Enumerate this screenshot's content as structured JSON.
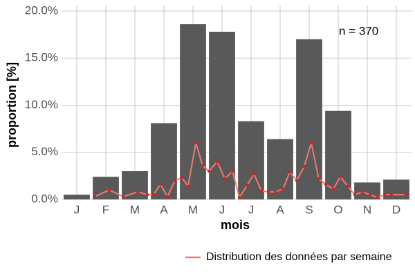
{
  "chart_data": {
    "type": "bar",
    "xlabel": "mois",
    "ylabel": "proportion [%]",
    "annotation": "n = 370",
    "categories": [
      "J",
      "F",
      "M",
      "A",
      "M",
      "J",
      "J",
      "A",
      "S",
      "O",
      "N",
      "D"
    ],
    "values": [
      0.5,
      2.4,
      3.0,
      8.1,
      18.6,
      17.8,
      8.3,
      6.4,
      17.0,
      9.4,
      1.8,
      2.1
    ],
    "color": "#595959",
    "ylim": [
      0,
      20
    ],
    "yticks": [
      {
        "value": 0,
        "label": "0.0%"
      },
      {
        "value": 5,
        "label": "5.0%"
      },
      {
        "value": 10,
        "label": "10.0%"
      },
      {
        "value": 15,
        "label": "15.0%"
      },
      {
        "value": 20,
        "label": "20.0%"
      }
    ],
    "grid": true,
    "legend": "bottom-right",
    "line": {
      "name": "Distribution des données par semaine",
      "color": "#f07a70",
      "point_color": "#e31a1c",
      "x": [
        1.62,
        2.12,
        2.6,
        3.1,
        3.43,
        3.64,
        3.88,
        4.12,
        4.38,
        4.62,
        4.83,
        5.1,
        5.33,
        5.55,
        5.83,
        6.1,
        6.36,
        6.6,
        6.86,
        7.1,
        7.36,
        7.6,
        7.83,
        8.1,
        8.33,
        8.57,
        8.83,
        9.07,
        9.33,
        9.57,
        9.83,
        10.07,
        10.33,
        10.57,
        10.83,
        11.1,
        11.36,
        11.6,
        11.83,
        12.33
      ],
      "values": [
        0.3,
        1.0,
        0.3,
        0.8,
        0.5,
        0.5,
        1.6,
        0.3,
        2.0,
        2.3,
        1.4,
        6.0,
        3.6,
        3.0,
        4.0,
        2.2,
        3.0,
        0.2,
        1.5,
        2.7,
        0.9,
        0.8,
        0.8,
        1.1,
        2.9,
        2.0,
        3.5,
        6.0,
        2.2,
        1.6,
        1.1,
        2.4,
        1.4,
        0.5,
        0.8,
        0.5,
        0.2,
        0.5,
        0.5,
        0.5
      ]
    }
  }
}
